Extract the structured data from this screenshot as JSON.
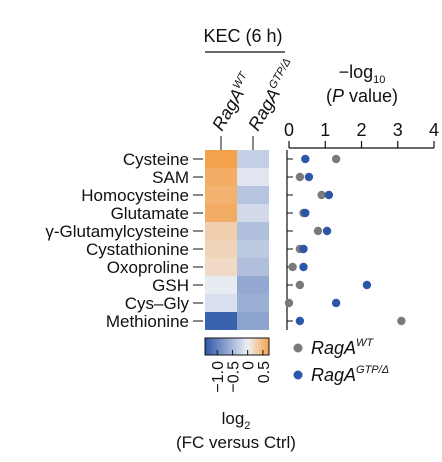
{
  "figure": {
    "group_title": "KEC (6 h)",
    "heatmap_columns": [
      "RagA",
      "RagA"
    ],
    "heatmap_column_superscripts": [
      "WT",
      "GTP/Δ"
    ]
  },
  "chart_data": [
    {
      "type": "heatmap",
      "rows": [
        "Cysteine",
        "SAM",
        "Homocysteine",
        "Glutamate",
        "γ-Glutamylcysteine",
        "Cystathionine",
        "Oxoproline",
        "GSH",
        "Cys–Gly",
        "Methionine"
      ],
      "columns": [
        "RagA WT",
        "RagA GTP/Δ"
      ],
      "values": [
        [
          0.7,
          -0.3
        ],
        [
          0.6,
          -0.1
        ],
        [
          0.55,
          -0.4
        ],
        [
          0.6,
          -0.2
        ],
        [
          0.3,
          -0.45
        ],
        [
          0.25,
          -0.35
        ],
        [
          0.2,
          -0.45
        ],
        [
          -0.05,
          -0.65
        ],
        [
          -0.15,
          -0.6
        ],
        [
          -1.3,
          -0.7
        ]
      ],
      "colorbar": {
        "ticks": [
          -1.0,
          -0.5,
          0,
          0.5
        ],
        "tick_labels": [
          "−1.0",
          "−0.5",
          "0",
          "0.5"
        ],
        "range": [
          -1.4,
          0.7
        ],
        "label_main": "log",
        "label_sub": "2",
        "label_line2": "(FC versus Ctrl)",
        "colors": {
          "low": "#2c57a8",
          "mid": "#eef0f5",
          "high": "#f4a14c"
        }
      }
    },
    {
      "type": "scatter",
      "orientation": "horizontal",
      "categories": [
        "Cysteine",
        "SAM",
        "Homocysteine",
        "Glutamate",
        "γ-Glutamylcysteine",
        "Cystathionine",
        "Oxoproline",
        "GSH",
        "Cys–Gly",
        "Methionine"
      ],
      "xlabel_line1": "−log",
      "xlabel_sub": "10",
      "xlabel_line2_pre": "(",
      "xlabel_line2_italic": "P",
      "xlabel_line2_post": " value)",
      "xlim": [
        0,
        4
      ],
      "xticks": [
        0,
        1,
        2,
        3,
        4
      ],
      "series": [
        {
          "name": "RagA",
          "name_superscript": "WT",
          "color": "#7a7a7a",
          "values": [
            1.3,
            0.3,
            0.9,
            0.4,
            0.8,
            0.3,
            0.1,
            0.3,
            0.0,
            3.1
          ]
        },
        {
          "name": "RagA",
          "name_superscript": "GTP/Δ",
          "color": "#2c57a8",
          "values": [
            0.45,
            0.55,
            1.1,
            0.45,
            1.05,
            0.4,
            0.4,
            2.15,
            1.3,
            0.3
          ]
        }
      ],
      "legend_position": "bottom-right"
    }
  ]
}
